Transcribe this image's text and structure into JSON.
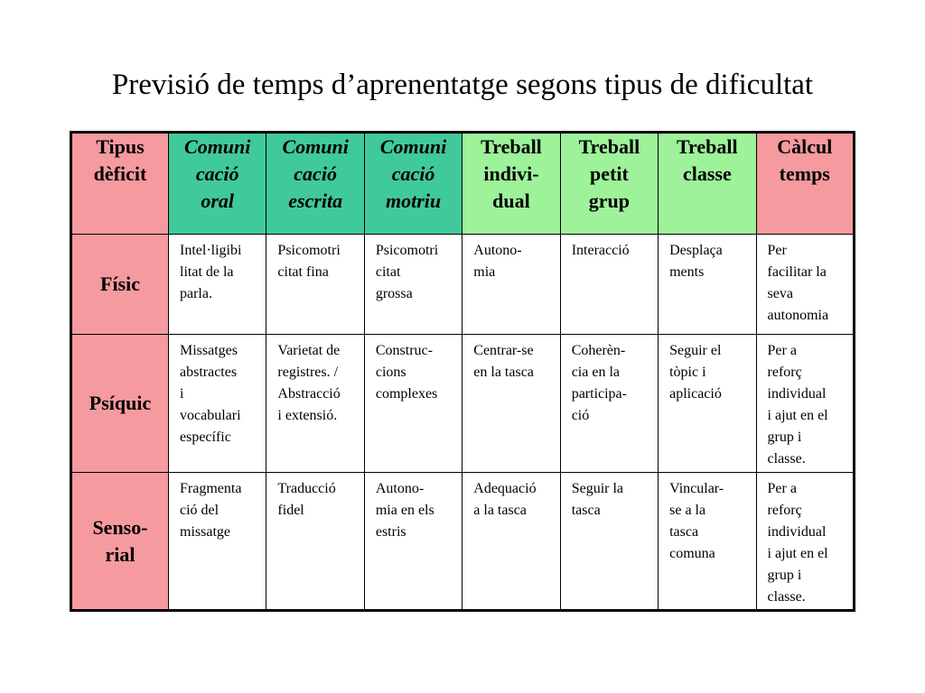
{
  "title": "Previsió de temps d’aprenentatge segons tipus de dificultat",
  "colors": {
    "pink": "#f59a9e",
    "teal": "#40c99a",
    "light_green": "#9df29a"
  },
  "headers": [
    {
      "text": "Tipus\ndèficit"
    },
    {
      "text": "Comuni\ncació\noral"
    },
    {
      "text": "Comuni\ncació\nescrita"
    },
    {
      "text": "Comuni\ncació\nmotriu"
    },
    {
      "text": "Treball\nindivi-\ndual"
    },
    {
      "text": "Treball\npetit\ngrup"
    },
    {
      "text": "Treball\nclasse"
    },
    {
      "text": "Càlcul\ntemps"
    }
  ],
  "rows": [
    {
      "label": "Físic",
      "cells": [
        "Intel·ligibi\nlitat de la\nparla.",
        "Psicomotri\ncitat fina",
        "Psicomotri\ncitat\ngrossa",
        "Autono-\nmia",
        "Interacció",
        "Desplaça\nments",
        "Per\nfacilitar la\nseva\nautonomia"
      ]
    },
    {
      "label": "Psíquic",
      "cells": [
        "Missatges\nabstractes\ni\nvocabulari\nespecífic",
        "Varietat de\nregistres. /\nAbstracció\ni extensió.",
        "Construc-\ncions\ncomplexes",
        "Centrar-se\nen la tasca",
        "Coherèn-\ncia en la\nparticipa-\nció",
        "Seguir el\ntòpic i\naplicació",
        "Per a\nreforç\nindividual\ni ajut en el\ngrup i\nclasse."
      ]
    },
    {
      "label": "Senso-\nrial",
      "cells": [
        "Fragmenta\nció del\nmissatge",
        "Traducció\nfidel",
        "Autono-\nmia en els\nestris",
        "Adequació\na la tasca",
        "Seguir la\ntasca",
        "Vincular-\nse a la\ntasca\ncomuna",
        "Per a\nreforç\nindividual\ni ajut en el\ngrup i\nclasse."
      ]
    }
  ]
}
